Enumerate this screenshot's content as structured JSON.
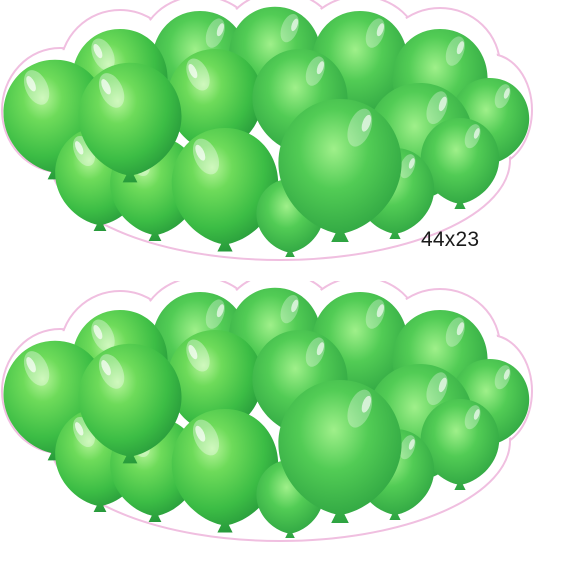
{
  "size_label": "44x23",
  "colors": {
    "balloon_base": "#3fc247",
    "balloon_light": "#8de870",
    "balloon_dark": "#23913a",
    "outline": "#f3c6e4"
  },
  "icons": [
    "balloon-icon"
  ]
}
